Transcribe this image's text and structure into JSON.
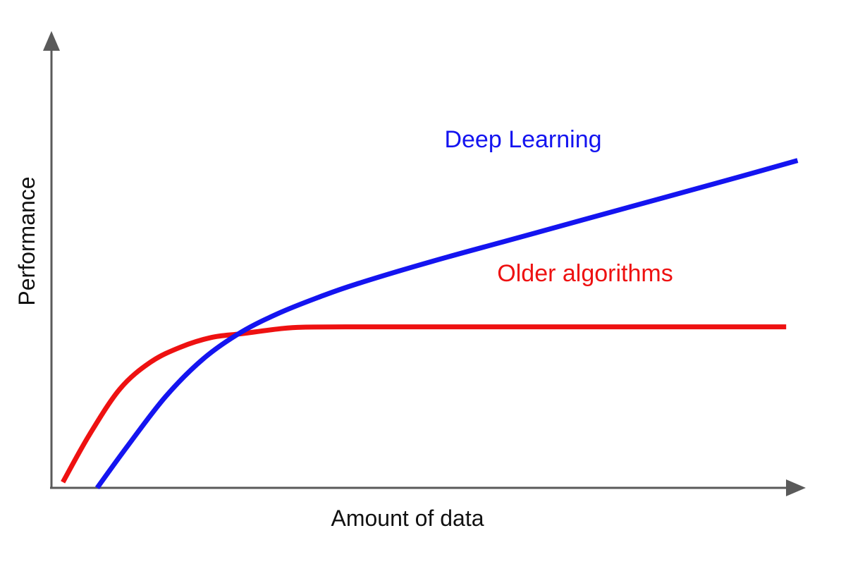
{
  "chart_data": {
    "type": "line",
    "xlabel": "Amount of data",
    "ylabel": "Performance",
    "xlim": [
      0,
      100
    ],
    "ylim": [
      0,
      100
    ],
    "grid": false,
    "axis_color": "#5a5a5a",
    "series": [
      {
        "name": "Deep Learning",
        "color": "#1414f0",
        "points": [
          [
            6,
            0
          ],
          [
            10,
            11
          ],
          [
            15,
            24
          ],
          [
            20,
            34
          ],
          [
            25,
            41
          ],
          [
            30,
            46
          ],
          [
            35,
            50
          ],
          [
            40,
            53.5
          ],
          [
            50,
            59.5
          ],
          [
            60,
            65
          ],
          [
            70,
            70.5
          ],
          [
            80,
            76
          ],
          [
            90,
            81.5
          ],
          [
            98,
            86
          ]
        ]
      },
      {
        "name": "Older algorithms",
        "color": "#ee1111",
        "points": [
          [
            1.5,
            1.5
          ],
          [
            5,
            14
          ],
          [
            9,
            26
          ],
          [
            13,
            33
          ],
          [
            17,
            37
          ],
          [
            21,
            39.5
          ],
          [
            25,
            40.5
          ],
          [
            30,
            41.8
          ],
          [
            33,
            42.2
          ],
          [
            40,
            42.3
          ],
          [
            50,
            42.3
          ],
          [
            70,
            42.3
          ],
          [
            96.5,
            42.3
          ]
        ]
      }
    ]
  }
}
